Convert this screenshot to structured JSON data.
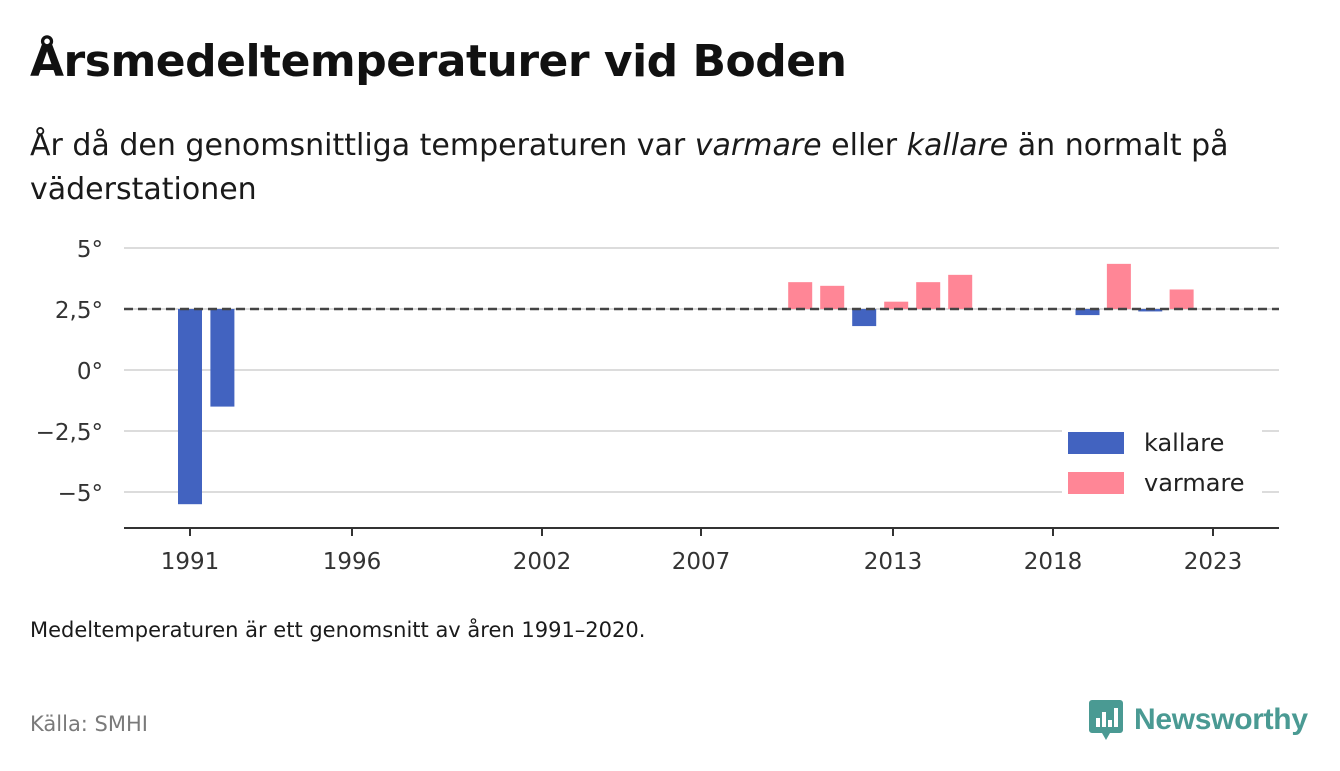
{
  "title": "Årsmedeltemperaturer vid Boden",
  "subtitle": {
    "part1": "År då den genomsnittliga temperaturen var ",
    "warm_word": "varmare",
    "part2": " eller ",
    "cold_word": "kallare",
    "part3": " än normalt på väderstationen"
  },
  "note": "Medeltemperaturen är ett genomsnitt av åren 1991–2020.",
  "source": "Källa: SMHI",
  "brand": {
    "name": "Newsworthy",
    "icon": "newsworthy-logo-icon"
  },
  "colors": {
    "kallare": "#4263c0",
    "varmare": "#ff8696",
    "grid": "#dcdcdc",
    "reference": "#444444",
    "axis": "#333333"
  },
  "chart_data": {
    "type": "bar",
    "xlabel": "",
    "ylabel": "",
    "x_ticks": [
      "1991",
      "1996",
      "2002",
      "2007",
      "2013",
      "2018",
      "2023"
    ],
    "y_ticks": [
      "5°",
      "2,5°",
      "0°",
      "−2,5°",
      "−5°"
    ],
    "y_tick_values": [
      5,
      2.5,
      0,
      -2.5,
      -5
    ],
    "ylim": [
      -6.5,
      5.6
    ],
    "xlim": [
      1989.9,
      1991.0,
      1996.0,
      2001.9,
      2006.9,
      2012.9,
      2017.9,
      2023.0,
      2025.6
    ],
    "baseline": 2.5,
    "reference_line": {
      "value": 2.5,
      "style": "dashed"
    },
    "grid": true,
    "legend": {
      "position": "bottom-right",
      "entries": [
        {
          "label": "kallare",
          "color": "#4263c0"
        },
        {
          "label": "varmare",
          "color": "#ff8696"
        }
      ]
    },
    "series": [
      {
        "name": "kallare",
        "color": "#4263c0",
        "points": [
          {
            "year": 1991,
            "value": -5.5
          },
          {
            "year": 1992,
            "value": -1.5
          },
          {
            "year": 2012,
            "value": 1.8
          },
          {
            "year": 2019,
            "value": 2.25
          },
          {
            "year": 2021,
            "value": 2.4
          }
        ]
      },
      {
        "name": "varmare",
        "color": "#ff8696",
        "points": [
          {
            "year": 2010,
            "value": 3.6
          },
          {
            "year": 2011,
            "value": 3.45
          },
          {
            "year": 2013,
            "value": 2.8
          },
          {
            "year": 2014,
            "value": 3.6
          },
          {
            "year": 2015,
            "value": 3.9
          },
          {
            "year": 2020,
            "value": 4.35
          },
          {
            "year": 2022,
            "value": 3.3
          }
        ]
      }
    ]
  }
}
